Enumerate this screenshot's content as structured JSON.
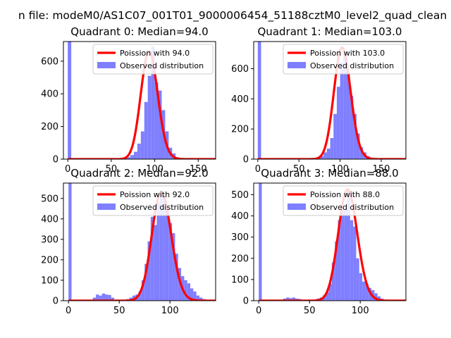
{
  "figure": {
    "suptitle": "n file: modeM0/AS1C07_001T01_9000006454_51188cztM0_level2_quad_clean"
  },
  "colors": {
    "histogram": "#7f7fff",
    "poisson": "#ff0000",
    "axes": "#000000"
  },
  "chart_data": [
    {
      "type": "bar",
      "title": "Quadrant 0: Median=94.0",
      "median": 94.0,
      "xlim": [
        -5,
        170
      ],
      "ylim": [
        0,
        720
      ],
      "xticks": [
        0,
        50,
        100,
        150
      ],
      "yticks": [
        0,
        200,
        400,
        600
      ],
      "legend_position": "top-right",
      "series": [
        {
          "name": "Poission with 94.0",
          "type": "line",
          "lambda": 94.0,
          "peak": 660
        },
        {
          "name": "Observed distribution",
          "type": "histogram",
          "bin_width": 4.0,
          "bins": [
            [
              0,
              720
            ],
            [
              28,
              5
            ],
            [
              36,
              5
            ],
            [
              44,
              5
            ],
            [
              56,
              5
            ],
            [
              64,
              8
            ],
            [
              68,
              12
            ],
            [
              72,
              25
            ],
            [
              76,
              45
            ],
            [
              80,
              95
            ],
            [
              84,
              170
            ],
            [
              88,
              350
            ],
            [
              92,
              510
            ],
            [
              96,
              690
            ],
            [
              100,
              470
            ],
            [
              104,
              420
            ],
            [
              108,
              300
            ],
            [
              112,
              170
            ],
            [
              116,
              70
            ],
            [
              120,
              35
            ],
            [
              124,
              12
            ],
            [
              128,
              6
            ],
            [
              136,
              4
            ],
            [
              148,
              3
            ]
          ]
        }
      ]
    },
    {
      "type": "bar",
      "title": "Quadrant 1: Median=103.0",
      "median": 103.0,
      "xlim": [
        -5,
        180
      ],
      "ylim": [
        0,
        780
      ],
      "xticks": [
        0,
        50,
        100,
        150
      ],
      "yticks": [
        0,
        200,
        400,
        600
      ],
      "legend_position": "top-right",
      "series": [
        {
          "name": "Poission with 103.0",
          "type": "line",
          "lambda": 103.0,
          "peak": 740
        },
        {
          "name": "Observed distribution",
          "type": "histogram",
          "bin_width": 4.0,
          "bins": [
            [
              0,
              780
            ],
            [
              52,
              5
            ],
            [
              64,
              8
            ],
            [
              72,
              12
            ],
            [
              76,
              20
            ],
            [
              80,
              45
            ],
            [
              84,
              70
            ],
            [
              88,
              140
            ],
            [
              92,
              300
            ],
            [
              96,
              480
            ],
            [
              100,
              640
            ],
            [
              104,
              700
            ],
            [
              108,
              580
            ],
            [
              112,
              420
            ],
            [
              116,
              300
            ],
            [
              120,
              170
            ],
            [
              124,
              80
            ],
            [
              128,
              45
            ],
            [
              132,
              20
            ],
            [
              136,
              8
            ],
            [
              140,
              5
            ],
            [
              156,
              3
            ]
          ]
        }
      ]
    },
    {
      "type": "bar",
      "title": "Quadrant 2: Median=92.0",
      "median": 92.0,
      "xlim": [
        -5,
        145
      ],
      "ylim": [
        0,
        575
      ],
      "xticks": [
        0,
        50,
        100
      ],
      "yticks": [
        0,
        100,
        200,
        300,
        400,
        500
      ],
      "legend_position": "top-right",
      "series": [
        {
          "name": "Poission with 92.0",
          "type": "line",
          "lambda": 92.0,
          "peak": 530
        },
        {
          "name": "Observed distribution",
          "type": "histogram",
          "bin_width": 3.0,
          "bins": [
            [
              0,
              575
            ],
            [
              24,
              15
            ],
            [
              27,
              30
            ],
            [
              30,
              25
            ],
            [
              33,
              35
            ],
            [
              36,
              30
            ],
            [
              39,
              28
            ],
            [
              42,
              15
            ],
            [
              45,
              5
            ],
            [
              51,
              3
            ],
            [
              57,
              8
            ],
            [
              60,
              15
            ],
            [
              63,
              25
            ],
            [
              66,
              30
            ],
            [
              69,
              45
            ],
            [
              72,
              100
            ],
            [
              75,
              180
            ],
            [
              78,
              290
            ],
            [
              81,
              410
            ],
            [
              84,
              370
            ],
            [
              87,
              480
            ],
            [
              90,
              540
            ],
            [
              93,
              510
            ],
            [
              96,
              450
            ],
            [
              99,
              380
            ],
            [
              102,
              330
            ],
            [
              105,
              230
            ],
            [
              108,
              160
            ],
            [
              111,
              120
            ],
            [
              114,
              100
            ],
            [
              117,
              85
            ],
            [
              120,
              60
            ],
            [
              123,
              45
            ],
            [
              126,
              25
            ],
            [
              129,
              15
            ],
            [
              132,
              8
            ],
            [
              135,
              5
            ]
          ]
        }
      ]
    },
    {
      "type": "bar",
      "title": "Quadrant 3: Median=88.0",
      "median": 88.0,
      "xlim": [
        -5,
        145
      ],
      "ylim": [
        0,
        555
      ],
      "xticks": [
        0,
        50,
        100
      ],
      "yticks": [
        0,
        100,
        200,
        300,
        400,
        500
      ],
      "legend_position": "top-right",
      "series": [
        {
          "name": "Poission with 88.0",
          "type": "line",
          "lambda": 88.0,
          "peak": 525
        },
        {
          "name": "Observed distribution",
          "type": "histogram",
          "bin_width": 3.0,
          "bins": [
            [
              0,
              555
            ],
            [
              24,
              10
            ],
            [
              27,
              15
            ],
            [
              30,
              12
            ],
            [
              33,
              15
            ],
            [
              36,
              10
            ],
            [
              39,
              8
            ],
            [
              45,
              5
            ],
            [
              51,
              5
            ],
            [
              57,
              10
            ],
            [
              60,
              15
            ],
            [
              63,
              25
            ],
            [
              66,
              40
            ],
            [
              69,
              80
            ],
            [
              72,
              180
            ],
            [
              75,
              280
            ],
            [
              78,
              380
            ],
            [
              81,
              450
            ],
            [
              84,
              430
            ],
            [
              87,
              520
            ],
            [
              90,
              380
            ],
            [
              93,
              350
            ],
            [
              96,
              200
            ],
            [
              99,
              130
            ],
            [
              102,
              90
            ],
            [
              105,
              80
            ],
            [
              108,
              60
            ],
            [
              111,
              50
            ],
            [
              114,
              35
            ],
            [
              117,
              20
            ],
            [
              120,
              10
            ],
            [
              123,
              5
            ]
          ]
        }
      ]
    }
  ]
}
